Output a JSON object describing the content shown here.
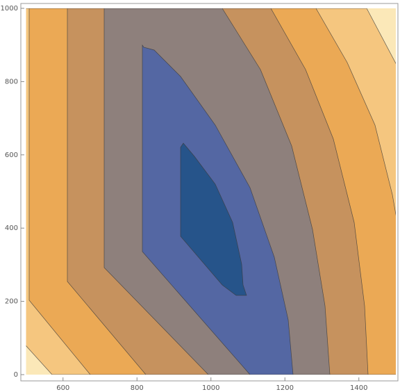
{
  "chart_data": {
    "type": "contour",
    "xlim": [
      500,
      1500
    ],
    "ylim": [
      0,
      1000
    ],
    "xticks": [
      600,
      800,
      1000,
      1200,
      1400
    ],
    "yticks": [
      0,
      200,
      400,
      600,
      800,
      1000
    ]
  }
}
